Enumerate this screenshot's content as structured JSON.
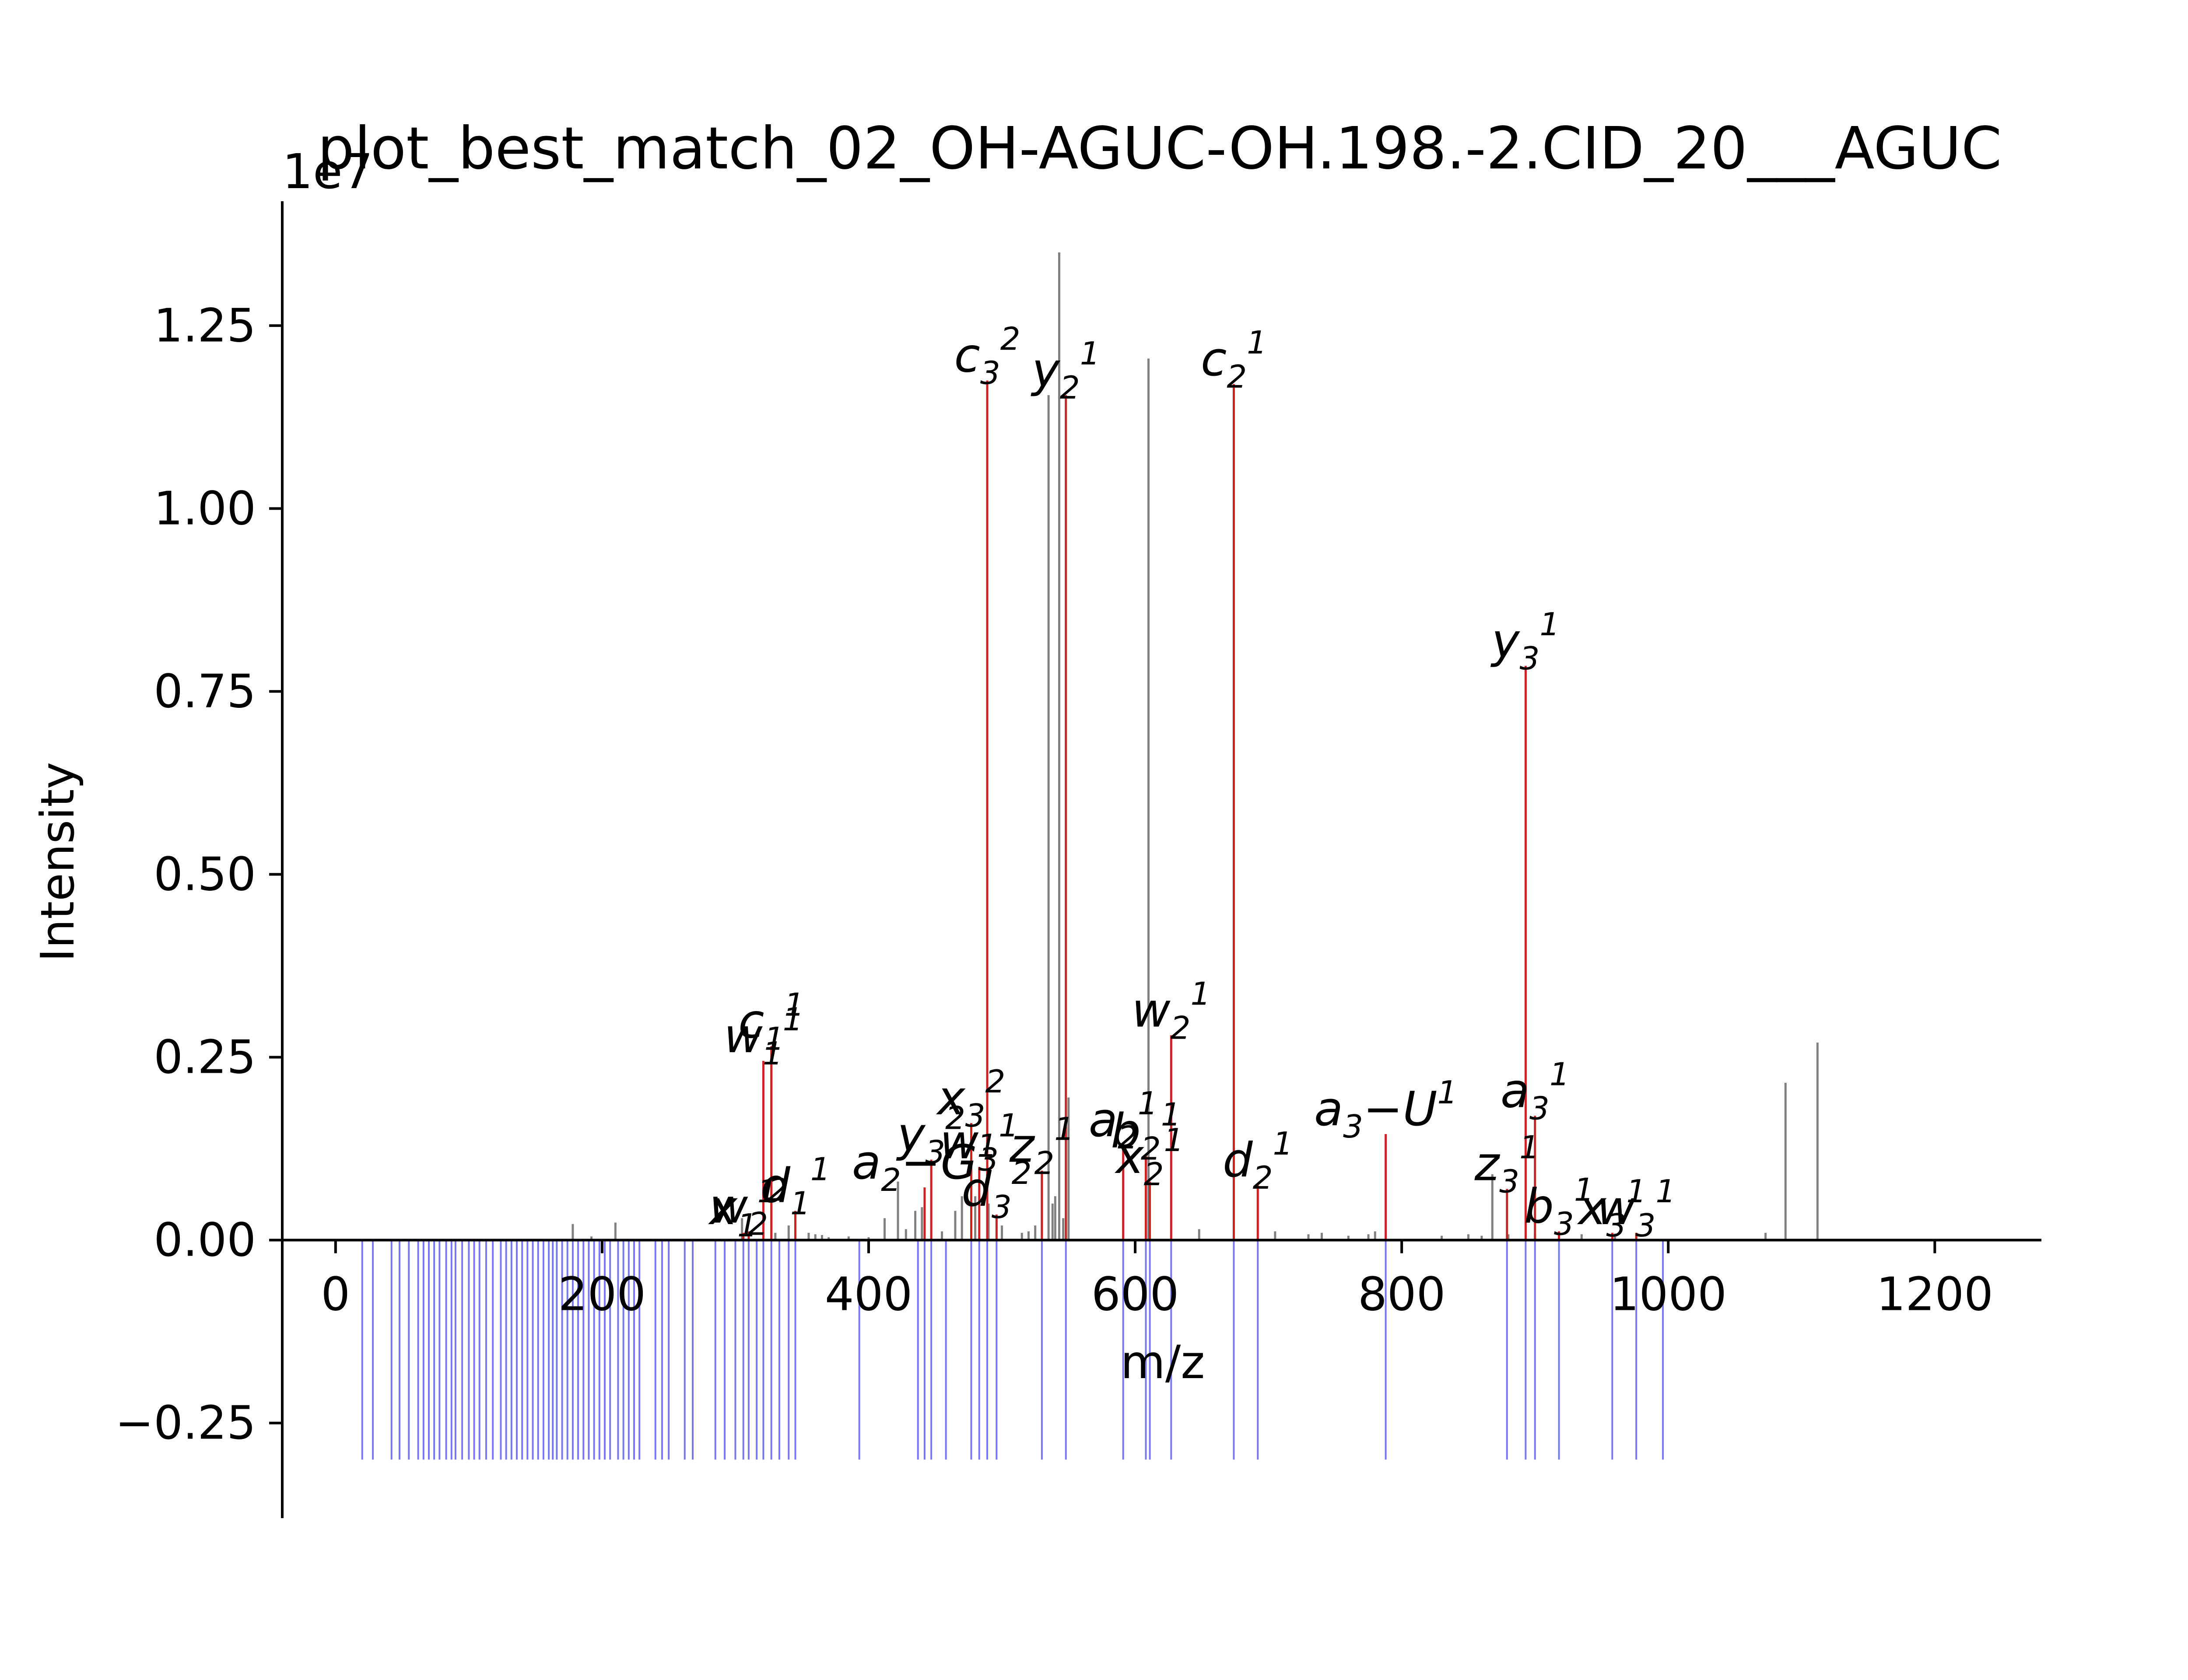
{
  "chart_data": {
    "type": "bar",
    "title": "plot_best_match_02_OH-AGUC-OH.198.-2.CID_20___AGUC",
    "offset_label": "1e7",
    "xlabel": "m/z",
    "ylabel": "Intensity",
    "xlim": [
      -40,
      1280
    ],
    "ylim": [
      -0.38,
      1.42
    ],
    "y_scale": 10000000,
    "xticks": [
      {
        "value": 0,
        "label": "0"
      },
      {
        "value": 200,
        "label": "200"
      },
      {
        "value": 400,
        "label": "400"
      },
      {
        "value": 600,
        "label": "600"
      },
      {
        "value": 800,
        "label": "800"
      },
      {
        "value": 1000,
        "label": "1000"
      },
      {
        "value": 1200,
        "label": "1200"
      }
    ],
    "yticks": [
      {
        "value": -0.25,
        "label": "−0.25"
      },
      {
        "value": 0.0,
        "label": "0.00"
      },
      {
        "value": 0.25,
        "label": "0.25"
      },
      {
        "value": 0.5,
        "label": "0.50"
      },
      {
        "value": 0.75,
        "label": "0.75"
      },
      {
        "value": 1.0,
        "label": "1.00"
      },
      {
        "value": 1.25,
        "label": "1.25"
      }
    ],
    "colors": {
      "unmatched": "#808080",
      "matched": "#cc2222",
      "theoretical": "#5555ee",
      "axis": "#000000"
    },
    "unmatched_peaks": {
      "mz": [
        178,
        192,
        210,
        305,
        330,
        340,
        355,
        360,
        365,
        370,
        385,
        400,
        412,
        422,
        428,
        435,
        440,
        455,
        465,
        470,
        480,
        490,
        500,
        515,
        520,
        525,
        535,
        538,
        540,
        543,
        546,
        550,
        610,
        648,
        705,
        730,
        740,
        760,
        775,
        780,
        830,
        850,
        860,
        868,
        880,
        900,
        935,
        960,
        1073,
        1088,
        1112
      ],
      "intensity": [
        0.022,
        0.005,
        0.024,
        0.03,
        0.01,
        0.02,
        0.01,
        0.008,
        0.007,
        0.004,
        0.005,
        0.004,
        0.03,
        0.08,
        0.015,
        0.04,
        0.045,
        0.012,
        0.04,
        0.06,
        0.06,
        0.05,
        0.02,
        0.01,
        0.012,
        0.02,
        1.155,
        0.05,
        0.06,
        1.35,
        0.03,
        0.195,
        1.205,
        0.015,
        0.012,
        0.008,
        0.01,
        0.006,
        0.008,
        0.012,
        0.006,
        0.008,
        0.006,
        0.09,
        0.008,
        0.01,
        0.008,
        0.009,
        0.01,
        0.215,
        0.27
      ]
    },
    "matched_peaks": [
      {
        "mz": 321,
        "intensity": 0.245,
        "label": "w",
        "sub": "1",
        "sup": "1"
      },
      {
        "mz": 327,
        "intensity": 0.265,
        "label": "c",
        "sub": "1",
        "sup": "1"
      },
      {
        "mz": 306,
        "intensity": 0.01,
        "label": "x",
        "sub": "1",
        "sup": "1"
      },
      {
        "mz": 310,
        "intensity": 0.012,
        "label": "w",
        "sub": "2",
        "sup": "2"
      },
      {
        "mz": 345,
        "intensity": 0.04,
        "label": "d",
        "sub": "1",
        "sup": "1"
      },
      {
        "mz": 442,
        "intensity": 0.072,
        "label": "a",
        "sub": "2",
        "sup": "1",
        "suffix": "−G"
      },
      {
        "mz": 447,
        "intensity": 0.11,
        "label": "y",
        "sub": "3",
        "sup": "2"
      },
      {
        "mz": 477,
        "intensity": 0.16,
        "label": "x",
        "sub": "3",
        "sup": "2"
      },
      {
        "mz": 483,
        "intensity": 0.1,
        "label": "w",
        "sub": "3",
        "sup": "1"
      },
      {
        "mz": 489,
        "intensity": 1.175,
        "label": "c",
        "sub": "3",
        "sup": "2"
      },
      {
        "mz": 496,
        "intensity": 0.035,
        "label": "d",
        "sub": "3",
        "sup": "2"
      },
      {
        "mz": 530,
        "intensity": 0.095,
        "label": "z",
        "sub": "2",
        "sup": "1"
      },
      {
        "mz": 548,
        "intensity": 1.155,
        "label": "y",
        "sub": "2",
        "sup": "1"
      },
      {
        "mz": 591,
        "intensity": 0.13,
        "label": "a",
        "sub": "2",
        "sup": "1"
      },
      {
        "mz": 608,
        "intensity": 0.115,
        "label": "b",
        "sub": "2",
        "sup": "1"
      },
      {
        "mz": 611,
        "intensity": 0.08,
        "label": "x",
        "sub": "2",
        "sup": "1"
      },
      {
        "mz": 627,
        "intensity": 0.28,
        "label": "w",
        "sub": "2",
        "sup": "1"
      },
      {
        "mz": 674,
        "intensity": 1.17,
        "label": "c",
        "sub": "2",
        "sup": "1"
      },
      {
        "mz": 692,
        "intensity": 0.075,
        "label": "d",
        "sub": "2",
        "sup": "1"
      },
      {
        "mz": 788,
        "intensity": 0.145,
        "label": "a",
        "sub": "3",
        "sup": "1",
        "suffix": "−U"
      },
      {
        "mz": 879,
        "intensity": 0.07,
        "label": "z",
        "sub": "3",
        "sup": "1"
      },
      {
        "mz": 893,
        "intensity": 0.785,
        "label": "y",
        "sub": "3",
        "sup": "1"
      },
      {
        "mz": 900,
        "intensity": 0.17,
        "label": "a",
        "sub": "3",
        "sup": "1"
      },
      {
        "mz": 918,
        "intensity": 0.012,
        "label": "b",
        "sub": "3",
        "sup": "1"
      },
      {
        "mz": 958,
        "intensity": 0.01,
        "label": "x",
        "sub": "3",
        "sup": "1"
      },
      {
        "mz": 976,
        "intensity": 0.01,
        "label": "w",
        "sub": "3",
        "sup": "1"
      }
    ],
    "theoretical_peaks": {
      "intensity": -0.3,
      "mz": [
        20,
        28,
        42,
        48,
        55,
        62,
        66,
        70,
        74,
        78,
        83,
        87,
        90,
        95,
        100,
        104,
        108,
        113,
        118,
        124,
        128,
        132,
        136,
        140,
        144,
        148,
        152,
        156,
        160,
        163,
        166,
        170,
        174,
        178,
        182,
        186,
        190,
        194,
        198,
        202,
        206,
        212,
        216,
        220,
        224,
        228,
        240,
        245,
        250,
        262,
        268,
        285,
        292,
        300,
        306,
        310,
        316,
        321,
        327,
        333,
        340,
        345,
        393,
        437,
        442,
        447,
        458,
        477,
        483,
        489,
        496,
        530,
        548,
        591,
        608,
        611,
        627,
        674,
        692,
        788,
        879,
        893,
        900,
        918,
        958,
        976,
        996
      ]
    }
  }
}
